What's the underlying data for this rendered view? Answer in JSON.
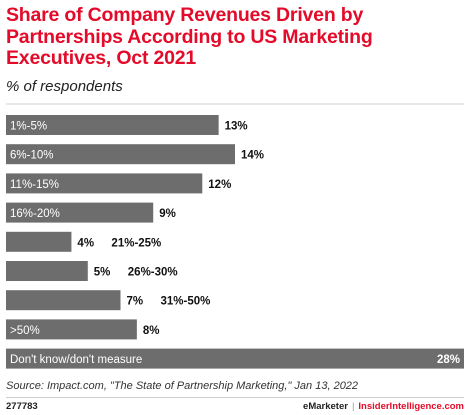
{
  "chart_title": "Share of Company Revenues Driven by Partnerships According to US Marketing Executives, Oct 2021",
  "chart_subtitle": "% of respondents",
  "source": "Source: Impact.com, \"The State of Partnership Marketing,\" Jan 13, 2022",
  "chart_id": "277783",
  "brand": {
    "emarketer": "eMarketer",
    "separator": "|",
    "insider": "InsiderIntelligence.com"
  },
  "colors": {
    "title": "#e30b29",
    "bar": "#6d6d6d",
    "gridline": "#cfcfcf",
    "bar_label_inside": "#ffffff",
    "value_label": "#111111"
  },
  "chart_data": {
    "type": "bar",
    "orientation": "horizontal",
    "categories": [
      "1%-5%",
      "6%-10%",
      "11%-15%",
      "16%-20%",
      "21%-25%",
      "26%-30%",
      "31%-50%",
      ">50%",
      "Don't know/don't measure"
    ],
    "values": [
      13,
      14,
      12,
      9,
      4,
      5,
      7,
      8,
      28
    ],
    "value_labels": [
      "13%",
      "14%",
      "12%",
      "9%",
      "4%",
      "5%",
      "7%",
      "8%",
      "28%"
    ],
    "title": "Share of Company Revenues Driven by Partnerships According to US Marketing Executives, Oct 2021",
    "subtitle": "% of respondents",
    "xlabel": "",
    "ylabel": "",
    "xlim": [
      0,
      28
    ],
    "grid": false,
    "legend": "none"
  }
}
